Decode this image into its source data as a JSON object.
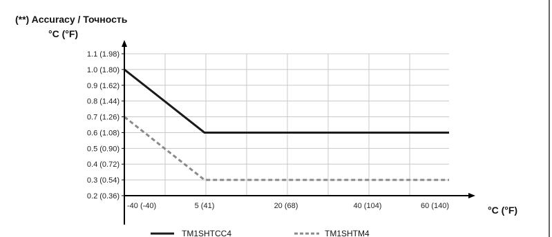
{
  "chart_data": {
    "type": "line",
    "title": "(**) Accuracy / Точность",
    "ylabel": "°C (°F)",
    "xlabel": "°C (°F)",
    "grid": true,
    "legend_position": "bottom",
    "y_ticks": [
      {
        "value": 0.2,
        "label": "0.2 (0.36)"
      },
      {
        "value": 0.3,
        "label": "0.3 (0.54)"
      },
      {
        "value": 0.4,
        "label": "0.4 (0.72)"
      },
      {
        "value": 0.5,
        "label": "0.5 (0.90)"
      },
      {
        "value": 0.6,
        "label": "0.6 (1.08)"
      },
      {
        "value": 0.7,
        "label": "0.7 (1.26)"
      },
      {
        "value": 0.8,
        "label": "0.8 (1.44)"
      },
      {
        "value": 0.9,
        "label": "0.9 (1.62)"
      },
      {
        "value": 1.0,
        "label": "1.0 (1.80)"
      },
      {
        "value": 1.1,
        "label": "1.1 (1.98)"
      }
    ],
    "x_ticks": [
      {
        "value": -40,
        "label": "-40 (-40)"
      },
      {
        "value": 5,
        "label": "5 (41)"
      },
      {
        "value": 20,
        "label": "20 (68)"
      },
      {
        "value": 40,
        "label": "40 (104)"
      },
      {
        "value": 60,
        "label": "60 (140)"
      }
    ],
    "series": [
      {
        "name": "TM1SHTCC4",
        "style": "solid",
        "color": "#1a1a1a",
        "points": [
          [
            -40,
            1.0
          ],
          [
            5,
            0.6
          ],
          [
            60,
            0.6
          ]
        ]
      },
      {
        "name": "TM1SHTM4",
        "style": "dashed",
        "color": "#8a8a8a",
        "points": [
          [
            -40,
            0.7
          ],
          [
            5,
            0.3
          ],
          [
            60,
            0.3
          ]
        ]
      }
    ]
  }
}
